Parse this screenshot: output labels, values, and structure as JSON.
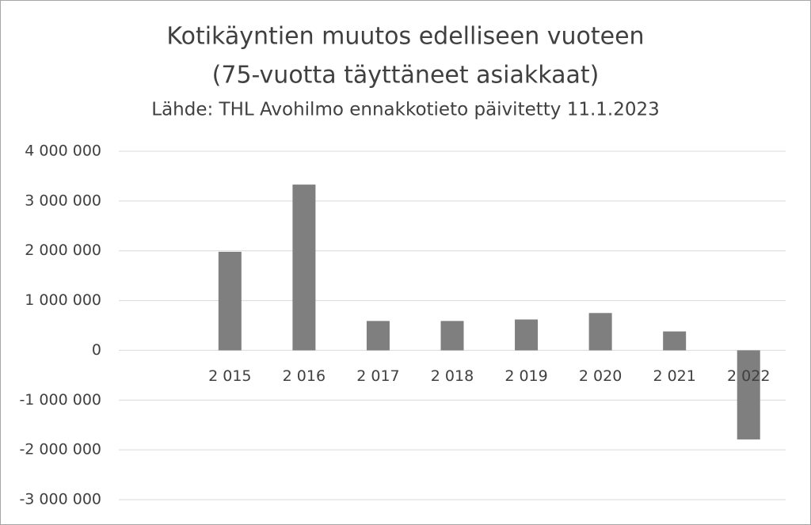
{
  "chart_data": {
    "type": "bar",
    "title": [
      "Kotikäyntien muutos edelliseen vuoteen",
      "(75-vuotta täyttäneet asiakkaat)"
    ],
    "subtitle": "Lähde: THL Avohilmo ennakkotieto päivitetty 11.1.2023",
    "categories": [
      null,
      "2 015",
      "2 016",
      "2 017",
      "2 018",
      "2 019",
      "2 020",
      "2 021",
      "2 022"
    ],
    "values": [
      null,
      1980000,
      3330000,
      590000,
      590000,
      620000,
      750000,
      380000,
      -1790000
    ],
    "color": "#7f7f7f",
    "ylim": [
      -3000000,
      4000000
    ],
    "yticks": [
      {
        "value": -3000000,
        "label": "-3 000 000"
      },
      {
        "value": -2000000,
        "label": "-2 000 000"
      },
      {
        "value": -1000000,
        "label": "-1 000 000"
      },
      0,
      {
        "value": 1000000,
        "label": "1 000 000"
      },
      {
        "value": 2000000,
        "label": "2 000 000"
      },
      {
        "value": 3000000,
        "label": "3 000 000"
      },
      {
        "value": 4000000,
        "label": "4 000 000"
      }
    ],
    "grid": true
  }
}
